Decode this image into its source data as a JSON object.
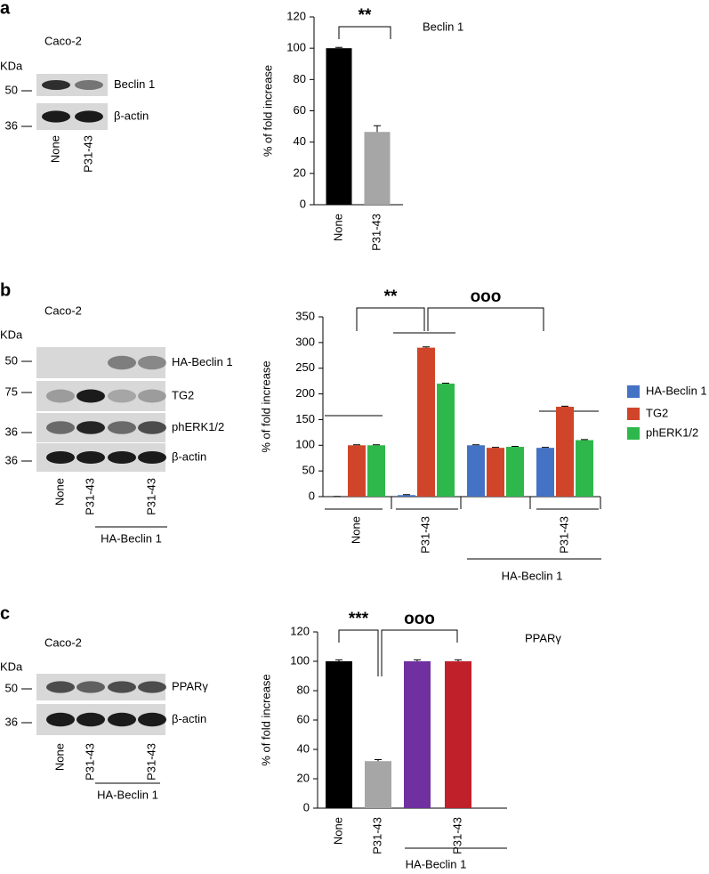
{
  "blots": [
    {
      "label": "a",
      "cell_line": "Caco-2",
      "unit": "KDa",
      "bands": [
        "Beclin 1",
        "β-actin"
      ],
      "mw": [
        50,
        36
      ],
      "lanes": [
        "None",
        "P31-43"
      ]
    },
    {
      "label": "b",
      "cell_line": "Caco-2",
      "unit": "KDa",
      "bands": [
        "HA-Beclin 1",
        "TG2",
        "phERK1/2",
        "β-actin"
      ],
      "mw": [
        50,
        75,
        36,
        36
      ],
      "lanes": [
        "None",
        "P31-43",
        null,
        "P31-43"
      ],
      "group_label": "HA-Beclin 1"
    },
    {
      "label": "c",
      "cell_line": "Caco-2",
      "unit": "KDa",
      "bands": [
        "PPARγ",
        "β-actin"
      ],
      "mw": [
        50,
        36
      ],
      "lanes": [
        "None",
        "P31-43",
        null,
        "P31-43"
      ],
      "group_label": "HA-Beclin 1"
    }
  ],
  "chart_data": [
    {
      "type": "bar",
      "title": "Beclin  1",
      "y_label": "% of fold increase",
      "categories": [
        "None",
        "P31-43"
      ],
      "values": [
        100,
        46.5
      ],
      "errors": [
        0.5,
        4
      ],
      "colors": [
        "#000000",
        "#a6a6a6"
      ],
      "ylim": [
        0,
        120
      ],
      "yticks": [
        0,
        20,
        40,
        60,
        80,
        100,
        120
      ],
      "annotations": [
        "**"
      ]
    },
    {
      "type": "grouped_bar",
      "y_label": "% of fold increase",
      "categories": [
        "None",
        "P31-43",
        null,
        "P31-43"
      ],
      "group_label": "HA-Beclin 1",
      "series": [
        {
          "name": "HA-Beclin 1",
          "color": "#4472c4",
          "values": [
            0,
            3,
            100,
            95
          ],
          "errors": [
            0.5,
            1,
            1,
            1
          ]
        },
        {
          "name": "TG2",
          "color": "#d0452a",
          "values": [
            100,
            290,
            95,
            175
          ],
          "errors": [
            1,
            1.5,
            1,
            1
          ]
        },
        {
          "name": "phERK1/2",
          "color": "#2eb84b",
          "values": [
            100,
            220,
            97,
            110
          ],
          "errors": [
            1,
            1,
            1,
            1
          ]
        }
      ],
      "ylim": [
        0,
        350
      ],
      "yticks": [
        0,
        50,
        100,
        150,
        200,
        250,
        300,
        350
      ],
      "legend": "right",
      "annotations": [
        "**",
        "ooo"
      ]
    },
    {
      "type": "bar",
      "title": "PPARγ",
      "y_label": "% of fold increase",
      "categories": [
        "None",
        "P31-43",
        null,
        "P31-43"
      ],
      "group_label": "HA-Beclin 1",
      "values": [
        100,
        32,
        100,
        100
      ],
      "errors": [
        1,
        1,
        1,
        1
      ],
      "colors": [
        "#000000",
        "#a6a6a6",
        "#7030a0",
        "#c0202a"
      ],
      "ylim": [
        0,
        120
      ],
      "yticks": [
        0,
        20,
        40,
        60,
        80,
        100,
        120
      ],
      "annotations": [
        "***",
        "ooo"
      ]
    }
  ]
}
